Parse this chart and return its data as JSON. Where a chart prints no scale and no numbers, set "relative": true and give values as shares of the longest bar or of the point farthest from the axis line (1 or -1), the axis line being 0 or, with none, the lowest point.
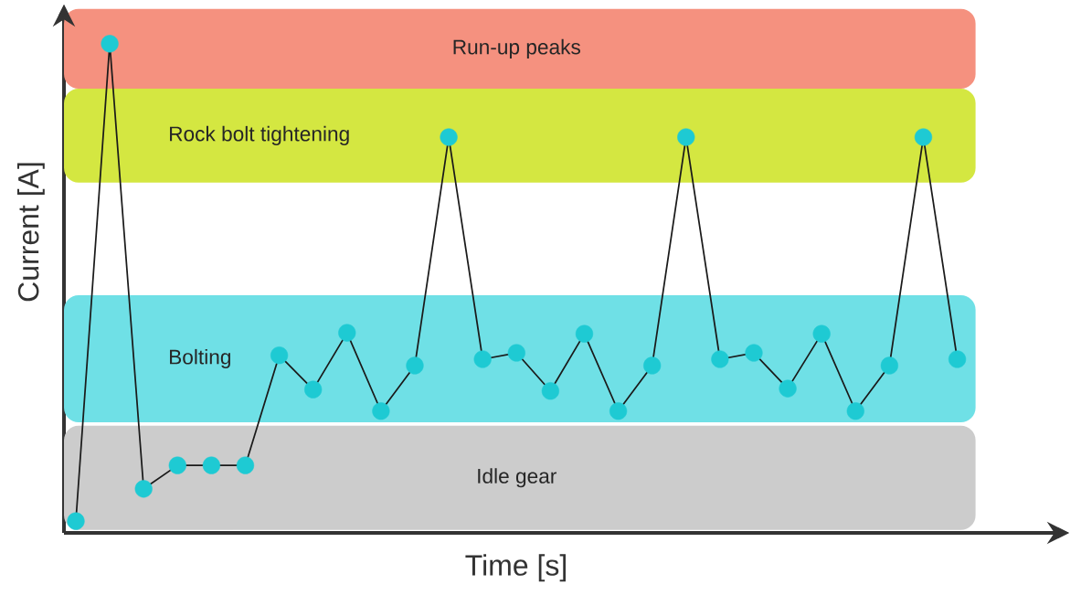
{
  "chart_data": {
    "type": "line",
    "relative": true,
    "xlabel": "Time [s]",
    "ylabel": "Current [A]",
    "categories": [
      null,
      null,
      null,
      null,
      null,
      null,
      null,
      null,
      null,
      null,
      null,
      null,
      null,
      null,
      null,
      null,
      null,
      null,
      null,
      null,
      null,
      null,
      null,
      null,
      null,
      null,
      null
    ],
    "values": [
      0.024,
      1,
      0.09,
      0.138,
      0.138,
      0.138,
      0.363,
      0.293,
      0.409,
      0.249,
      0.342,
      0.809,
      0.355,
      0.368,
      0.29,
      0.407,
      0.249,
      0.342,
      0.809,
      0.355,
      0.368,
      0.295,
      0.407,
      0.249,
      0.342,
      0.809,
      0.355
    ],
    "color": "#1a1a1a",
    "colors": [
      "#1ecad3",
      "#1ecad3",
      "#1ecad3",
      "#1ecad3",
      "#1ecad3",
      "#1ecad3",
      "#1ecad3",
      "#1ecad3",
      "#1ecad3",
      "#1ecad3",
      "#1ecad3",
      "#1ecad3",
      "#1ecad3",
      "#1ecad3",
      "#1ecad3",
      "#1ecad3",
      "#1ecad3",
      "#1ecad3",
      "#1ecad3",
      "#1ecad3",
      "#1ecad3",
      "#1ecad3",
      "#1ecad3",
      "#1ecad3",
      "#1ecad3",
      "#1ecad3",
      "#1ecad3"
    ],
    "marker": "circle",
    "line_style": "solid",
    "bands": [
      {
        "axis": "y",
        "from": 0.908,
        "to": 1.071,
        "label": "Run-up peaks",
        "color": "#f5917f"
      },
      {
        "axis": "y",
        "from": 0.716,
        "to": 0.908,
        "label": "Rock bolt tightening",
        "color": "#d4e741"
      },
      {
        "axis": "y",
        "from": 0.226,
        "to": 0.486,
        "label": "Bolting",
        "color": "#6fe0e6"
      },
      {
        "axis": "y",
        "from": 0.006,
        "to": 0.219,
        "label": "Idle gear",
        "color": "#cccccc"
      }
    ]
  }
}
